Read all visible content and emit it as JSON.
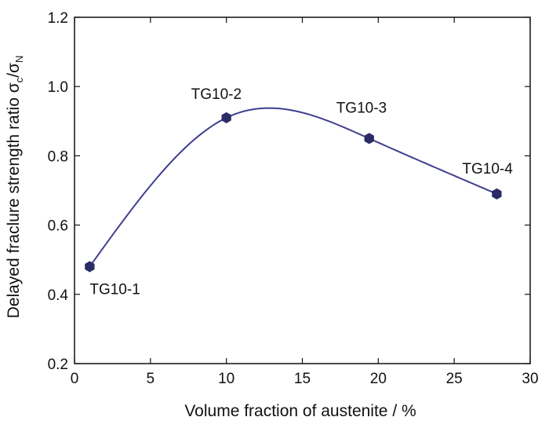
{
  "chart_data": {
    "type": "line",
    "title": "",
    "xlabel": "Volume fraction of austenite / %",
    "ylabel": {
      "text": "Delayed fraclure strength ratio ",
      "sigma": "σ",
      "sub_c": "c",
      "slash": "/",
      "sub_n": "N"
    },
    "xlim": [
      0,
      30
    ],
    "ylim": [
      0.2,
      1.2
    ],
    "xticks": [
      "0",
      "5",
      "10",
      "15",
      "20",
      "25",
      "30"
    ],
    "yticks": [
      "0.2",
      "0.4",
      "0.6",
      "0.8",
      "1.0",
      "1.2"
    ],
    "grid": false,
    "legend": "none",
    "smooth": true,
    "line_color": "#3f3f8f",
    "marker_color": "#2b2b66",
    "series": [
      {
        "points": [
          {
            "x": 1.0,
            "y": 0.48,
            "label": "TG10-1"
          },
          {
            "x": 10.0,
            "y": 0.91,
            "label": "TG10-2"
          },
          {
            "x": 19.4,
            "y": 0.85,
            "label": "TG10-3"
          },
          {
            "x": 27.8,
            "y": 0.69,
            "label": "TG10-4"
          }
        ]
      }
    ]
  }
}
